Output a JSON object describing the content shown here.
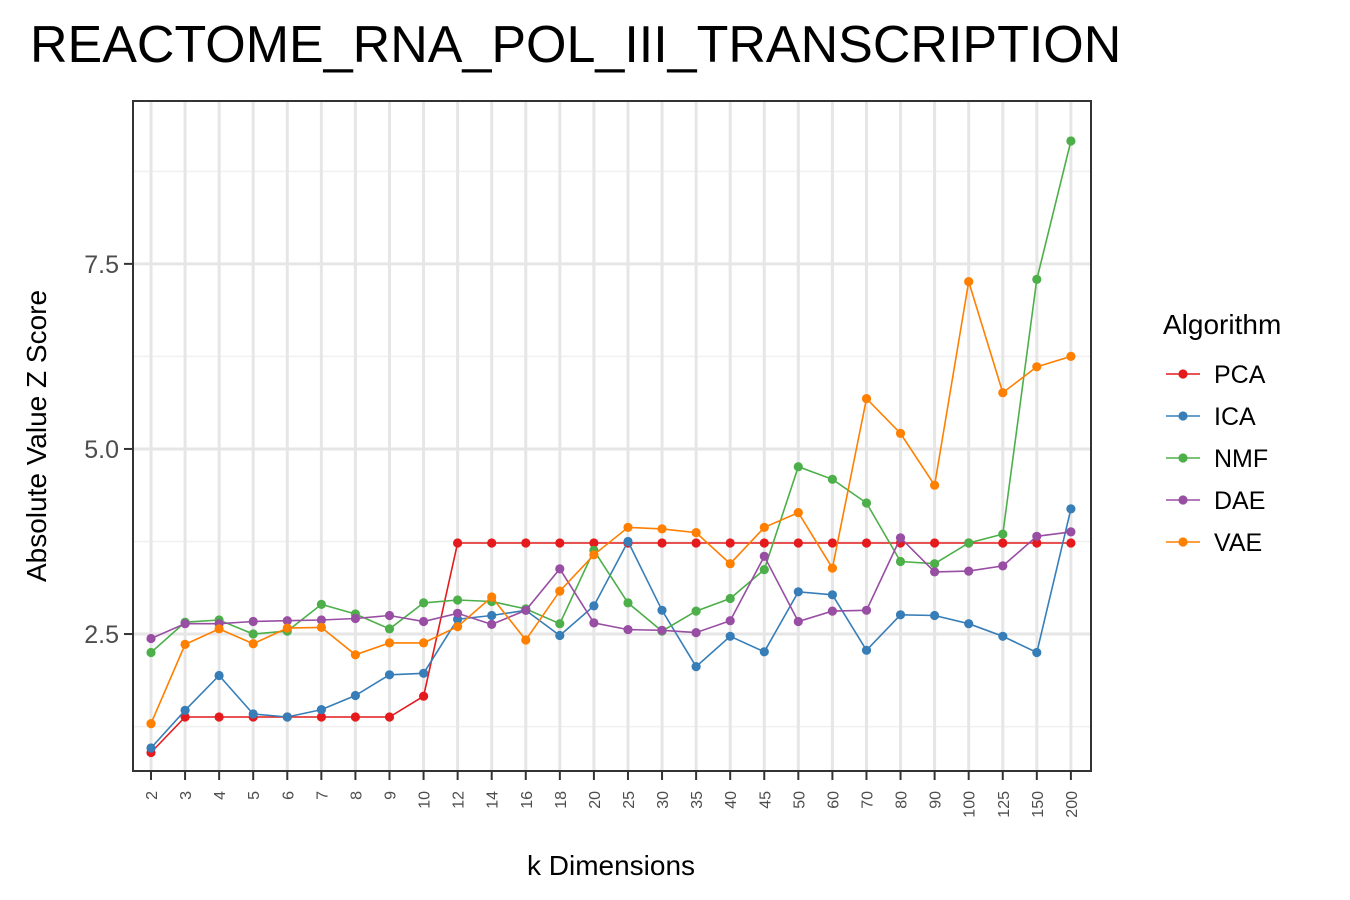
{
  "chart_data": {
    "type": "line",
    "title": "REACTOME_RNA_POL_III_TRANSCRIPTION",
    "xlabel": "k Dimensions",
    "ylabel": "Absolute Value Z Score",
    "categories": [
      "2",
      "3",
      "4",
      "5",
      "6",
      "7",
      "8",
      "9",
      "10",
      "12",
      "14",
      "16",
      "18",
      "20",
      "25",
      "30",
      "35",
      "40",
      "45",
      "50",
      "60",
      "70",
      "80",
      "90",
      "100",
      "125",
      "150",
      "200"
    ],
    "ylim": [
      0.65,
      9.7
    ],
    "yticks": [
      2.5,
      5.0,
      7.5
    ],
    "ytick_labels": [
      "2.5",
      "5.0",
      "7.5"
    ],
    "legend": {
      "title": "Algorithm",
      "position": "right"
    },
    "series": [
      {
        "name": "PCA",
        "color": "#e41a1c",
        "values": [
          0.9,
          1.38,
          1.38,
          1.38,
          1.38,
          1.38,
          1.38,
          1.38,
          1.66,
          3.73,
          3.73,
          3.73,
          3.73,
          3.73,
          3.73,
          3.73,
          3.73,
          3.73,
          3.73,
          3.73,
          3.73,
          3.73,
          3.73,
          3.73,
          3.73,
          3.73,
          3.73,
          3.73
        ]
      },
      {
        "name": "ICA",
        "color": "#377eb8",
        "values": [
          0.96,
          1.47,
          1.94,
          1.42,
          1.38,
          1.48,
          1.67,
          1.95,
          1.97,
          2.7,
          2.75,
          2.82,
          2.48,
          2.88,
          3.75,
          2.82,
          2.06,
          2.47,
          2.26,
          3.07,
          3.03,
          2.28,
          2.76,
          2.75,
          2.64,
          2.47,
          2.25,
          4.19
        ]
      },
      {
        "name": "NMF",
        "color": "#4daf4a",
        "values": [
          2.25,
          2.66,
          2.69,
          2.5,
          2.54,
          2.9,
          2.77,
          2.57,
          2.92,
          2.96,
          2.94,
          2.84,
          2.64,
          3.63,
          2.92,
          2.54,
          2.81,
          2.98,
          3.37,
          4.76,
          4.59,
          4.27,
          3.48,
          3.45,
          3.73,
          3.85,
          7.29,
          9.16
        ]
      },
      {
        "name": "DAE",
        "color": "#984ea3",
        "values": [
          2.44,
          2.64,
          2.64,
          2.67,
          2.68,
          2.69,
          2.71,
          2.75,
          2.67,
          2.78,
          2.63,
          2.82,
          3.38,
          2.65,
          2.56,
          2.55,
          2.52,
          2.68,
          3.55,
          2.67,
          2.81,
          2.82,
          3.8,
          3.34,
          3.35,
          3.42,
          3.82,
          3.88
        ]
      },
      {
        "name": "VAE",
        "color": "#ff7f00",
        "values": [
          1.29,
          2.36,
          2.57,
          2.37,
          2.58,
          2.59,
          2.22,
          2.38,
          2.38,
          2.6,
          3.0,
          2.42,
          3.08,
          3.57,
          3.94,
          3.92,
          3.87,
          3.45,
          3.94,
          4.14,
          3.39,
          5.68,
          5.21,
          4.51,
          7.26,
          5.76,
          6.11,
          6.25
        ]
      }
    ]
  }
}
